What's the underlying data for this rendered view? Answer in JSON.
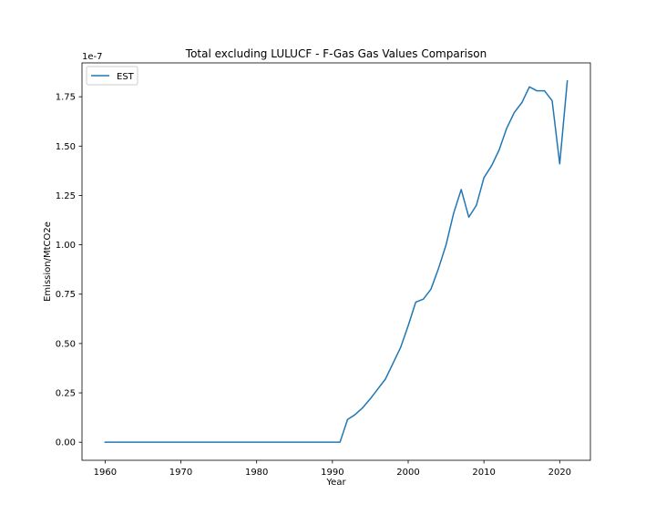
{
  "chart_data": {
    "type": "line",
    "title": "Total excluding LULUCF - F-Gas Gas Values Comparison",
    "xlabel": "Year",
    "ylabel": "Emission/MtCO2e",
    "y_offset_label": "1e-7",
    "y_scale_exponent": -7,
    "xlim": [
      1956.95,
      2024.05
    ],
    "ylim": [
      -0.0915,
      1.9215
    ],
    "x_ticks": [
      1960,
      1970,
      1980,
      1990,
      2000,
      2010,
      2020
    ],
    "x_tick_labels": [
      "1960",
      "1970",
      "1980",
      "1990",
      "2000",
      "2010",
      "2020"
    ],
    "y_ticks": [
      0,
      0.25,
      0.5,
      0.75,
      1.0,
      1.25,
      1.5,
      1.75
    ],
    "y_tick_labels": [
      "0.00",
      "0.25",
      "0.50",
      "0.75",
      "1.00",
      "1.25",
      "1.50",
      "1.75"
    ],
    "grid": false,
    "legend_position": "top-left",
    "series": [
      {
        "name": "EST",
        "color": "#1f77b4",
        "x": [
          1960,
          1961,
          1962,
          1963,
          1964,
          1965,
          1966,
          1967,
          1968,
          1969,
          1970,
          1971,
          1972,
          1973,
          1974,
          1975,
          1976,
          1977,
          1978,
          1979,
          1980,
          1981,
          1982,
          1983,
          1984,
          1985,
          1986,
          1987,
          1988,
          1989,
          1990,
          1991,
          1992,
          1993,
          1994,
          1995,
          1996,
          1997,
          1998,
          1999,
          2000,
          2001,
          2002,
          2003,
          2004,
          2005,
          2006,
          2007,
          2008,
          2009,
          2010,
          2011,
          2012,
          2013,
          2014,
          2015,
          2016,
          2017,
          2018,
          2019,
          2020,
          2021
        ],
        "y": [
          0,
          0,
          0,
          0,
          0,
          0,
          0,
          0,
          0,
          0,
          0,
          0,
          0,
          0,
          0,
          0,
          0,
          0,
          0,
          0,
          0,
          0,
          0,
          0,
          0,
          0,
          0,
          0,
          0,
          0,
          0,
          0,
          0.115,
          0.14,
          0.175,
          0.22,
          0.27,
          0.32,
          0.4,
          0.48,
          0.59,
          0.71,
          0.725,
          0.775,
          0.88,
          1.0,
          1.16,
          1.28,
          1.14,
          1.2,
          1.34,
          1.4,
          1.48,
          1.59,
          1.67,
          1.72,
          1.8,
          1.78,
          1.78,
          1.73,
          1.41,
          1.83
        ]
      }
    ]
  }
}
